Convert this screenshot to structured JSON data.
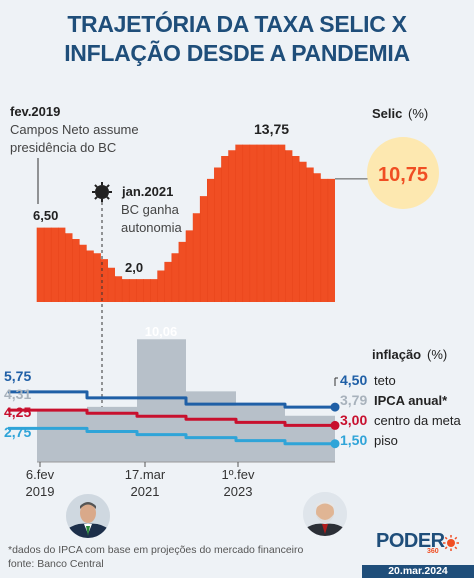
{
  "title_line1": "TRAJETÓRIA DA TAXA SELIC X",
  "title_line2": "INFLAÇÃO DESDE A PANDEMIA",
  "chart_data": {
    "type": "area",
    "selic": {
      "label": "Selic",
      "unit": "(%)",
      "current_value": "10,75",
      "steps": [
        6.5,
        6.5,
        6.5,
        6.5,
        6.0,
        5.5,
        5.0,
        4.5,
        4.25,
        3.75,
        3.0,
        2.25,
        2.0,
        2.0,
        2.0,
        2.0,
        2.0,
        2.75,
        3.5,
        4.25,
        5.25,
        6.25,
        7.75,
        9.25,
        10.75,
        11.75,
        12.75,
        13.25,
        13.75,
        13.75,
        13.75,
        13.75,
        13.75,
        13.75,
        13.75,
        13.25,
        12.75,
        12.25,
        11.75,
        11.25,
        10.75,
        10.75
      ],
      "annotations": [
        {
          "date": "fev.2019",
          "text1": "Campos Neto assume",
          "text2": "presidência do BC",
          "value": "6,50"
        },
        {
          "date": "jan.2021",
          "text1": "BC ganha",
          "text2": "autonomia",
          "value": "2,0"
        },
        {
          "value": "13,75"
        }
      ]
    },
    "inflation": {
      "label": "inflação",
      "unit": "(%)",
      "ipca_bars": [
        {
          "period": "2019",
          "value": 4.31
        },
        {
          "period": "2020",
          "value": 4.52
        },
        {
          "period": "2021",
          "value": 10.06
        },
        {
          "period": "2022",
          "value": 5.79
        },
        {
          "period": "2023",
          "value": 4.62
        },
        {
          "period": "2024",
          "value": 3.79
        }
      ],
      "ipca_highlight_label": "10,06",
      "start_values": {
        "teto": "5,75",
        "ipca": "4,31",
        "meta": "4,25",
        "piso": "2,75"
      },
      "end_values": {
        "teto": "4,50",
        "ipca": "3,79",
        "meta": "3,00",
        "piso": "1,50"
      },
      "series_labels": {
        "teto": "teto",
        "ipca": "IPCA anual*",
        "meta": "centro da meta",
        "piso": "piso"
      },
      "teto": [
        5.75,
        5.25,
        5.25,
        4.75,
        4.75,
        4.5
      ],
      "meta": [
        4.25,
        4.0,
        3.75,
        3.5,
        3.25,
        3.0
      ],
      "piso": [
        2.75,
        2.5,
        2.25,
        2.0,
        1.75,
        1.5
      ]
    },
    "x_ticks": [
      {
        "line1": "6.fev",
        "line2": "2019"
      },
      {
        "line1": "17.mar",
        "line2": "2021"
      },
      {
        "line1": "1º.fev",
        "line2": "2023"
      }
    ],
    "colors": {
      "selic": "#f04e23",
      "teto": "#1f5fa6",
      "meta": "#c8102e",
      "piso": "#2fa4d8",
      "ipca_bar": "#b7c0c9",
      "title": "#1f4e7a"
    }
  },
  "footnote1": "*dados do IPCA com base em projeções do mercado financeiro",
  "footnote2": "fonte: Banco Central",
  "logo": "PODER",
  "logo_sub": "360",
  "date_stamp": "20.mar.2024"
}
